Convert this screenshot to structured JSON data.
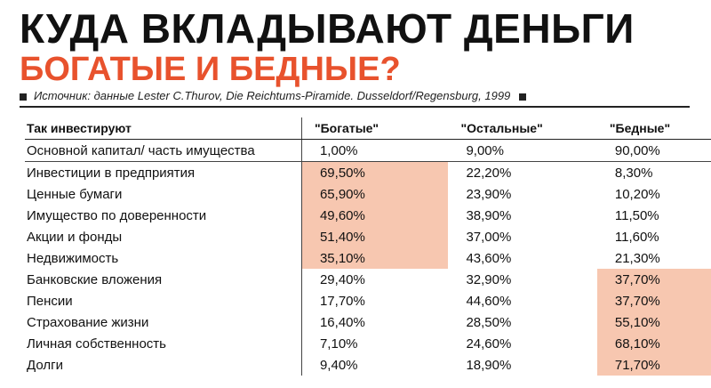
{
  "header": {
    "title": "КУДА ВКЛАДЫВАЮТ ДЕНЬГИ",
    "subtitle": "БОГАТЫЕ И БЕДНЫЕ?",
    "source": "Источник: данные Lester C.Thurov, Die Reichtums-Piramide. Dusseldorf/Regensburg, 1999"
  },
  "colors": {
    "accent": "#e8522d",
    "highlight": "#f7c7b0"
  },
  "chart_data": {
    "type": "table",
    "columns": [
      "Так инвестируют",
      "\"Богатые\"",
      "\"Остальные\"",
      "\"Бедные\""
    ],
    "rows": [
      {
        "label": "Основной капитал/ часть имущества",
        "values": [
          "1,00%",
          "9,00%",
          "90,00%"
        ],
        "highlight": [
          false,
          false,
          false
        ]
      },
      {
        "label": "Инвестиции в предприятия",
        "values": [
          "69,50%",
          "22,20%",
          "8,30%"
        ],
        "highlight": [
          true,
          false,
          false
        ]
      },
      {
        "label": "Ценные бумаги",
        "values": [
          "65,90%",
          "23,90%",
          "10,20%"
        ],
        "highlight": [
          true,
          false,
          false
        ]
      },
      {
        "label": "Имущество по доверенности",
        "values": [
          "49,60%",
          "38,90%",
          "11,50%"
        ],
        "highlight": [
          true,
          false,
          false
        ]
      },
      {
        "label": "Акции и фонды",
        "values": [
          "51,40%",
          "37,00%",
          "11,60%"
        ],
        "highlight": [
          true,
          false,
          false
        ]
      },
      {
        "label": "Недвижимость",
        "values": [
          "35,10%",
          "43,60%",
          "21,30%"
        ],
        "highlight": [
          true,
          false,
          false
        ]
      },
      {
        "label": "Банковские вложения",
        "values": [
          "29,40%",
          "32,90%",
          "37,70%"
        ],
        "highlight": [
          false,
          false,
          true
        ]
      },
      {
        "label": "Пенсии",
        "values": [
          "17,70%",
          "44,60%",
          "37,70%"
        ],
        "highlight": [
          false,
          false,
          true
        ]
      },
      {
        "label": "Страхование жизни",
        "values": [
          "16,40%",
          "28,50%",
          "55,10%"
        ],
        "highlight": [
          false,
          false,
          true
        ]
      },
      {
        "label": "Личная собственность",
        "values": [
          "7,10%",
          "24,60%",
          "68,10%"
        ],
        "highlight": [
          false,
          false,
          true
        ]
      },
      {
        "label": "Долги",
        "values": [
          "9,40%",
          "18,90%",
          "71,70%"
        ],
        "highlight": [
          false,
          false,
          true
        ]
      }
    ]
  }
}
